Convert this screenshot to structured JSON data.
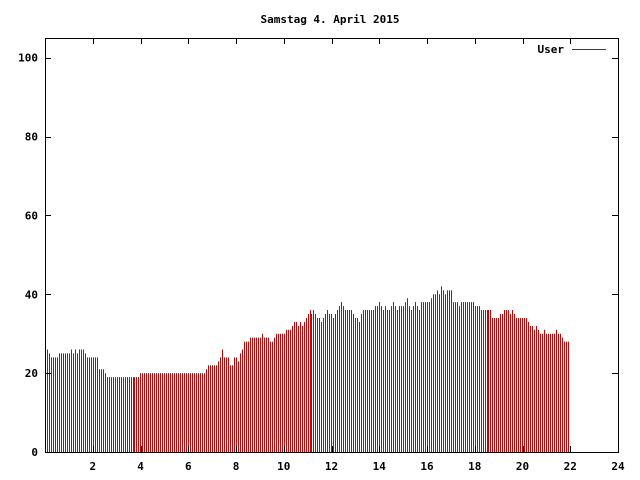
{
  "chart_data": {
    "type": "bar",
    "title": "Samstag 4. April 2015",
    "xlabel": "",
    "ylabel": "",
    "xlim": [
      0,
      24
    ],
    "ylim": [
      0,
      105
    ],
    "x_ticks": [
      2,
      4,
      6,
      8,
      10,
      12,
      14,
      16,
      18,
      20,
      22,
      24
    ],
    "y_ticks": [
      0,
      20,
      40,
      60,
      80,
      100
    ],
    "grid": false,
    "legend": "top-right",
    "bar_width_hours": 0.0833,
    "series": [
      {
        "name": "User",
        "color": "#cc0000",
        "x_start": 0,
        "x_step": 0.0833,
        "values": [
          26,
          26,
          25,
          24,
          24,
          24,
          24,
          25,
          25,
          25,
          25,
          25,
          25,
          26,
          25,
          26,
          25,
          26,
          26,
          26,
          25,
          24,
          24,
          24,
          24,
          24,
          24,
          21,
          21,
          21,
          20,
          19,
          19,
          19,
          19,
          19,
          19,
          19,
          19,
          19,
          19,
          19,
          19,
          19,
          19,
          19,
          19,
          19,
          20,
          20,
          20,
          20,
          20,
          20,
          20,
          20,
          20,
          20,
          20,
          20,
          20,
          20,
          20,
          20,
          20,
          20,
          20,
          20,
          20,
          20,
          20,
          20,
          20,
          20,
          20,
          20,
          20,
          20,
          20,
          20,
          20,
          21,
          22,
          22,
          22,
          22,
          22,
          23,
          24,
          26,
          24,
          24,
          24,
          22,
          22,
          24,
          24,
          23,
          25,
          26,
          28,
          28,
          28,
          29,
          29,
          29,
          29,
          29,
          29,
          30,
          29,
          29,
          29,
          28,
          28,
          29,
          30,
          30,
          30,
          30,
          30,
          31,
          31,
          31,
          32,
          33,
          33,
          32,
          33,
          32,
          33,
          34,
          35,
          36,
          35,
          36,
          35,
          34,
          34,
          33,
          34,
          35,
          36,
          35,
          35,
          34,
          35,
          36,
          37,
          38,
          37,
          36,
          36,
          36,
          36,
          35,
          34,
          34,
          33,
          35,
          36,
          36,
          36,
          36,
          36,
          36,
          37,
          37,
          38,
          37,
          36,
          37,
          36,
          36,
          37,
          38,
          37,
          36,
          37,
          37,
          37,
          38,
          39,
          37,
          36,
          37,
          38,
          37,
          36,
          38,
          38,
          38,
          38,
          38,
          39,
          40,
          40,
          41,
          40,
          42,
          41,
          40,
          41,
          41,
          41,
          38,
          38,
          38,
          37,
          38,
          38,
          38,
          38,
          38,
          38,
          38,
          37,
          37,
          37,
          36,
          36,
          36,
          36,
          36,
          36,
          34,
          34,
          34,
          34,
          35,
          35,
          36,
          36,
          36,
          35,
          36,
          35,
          34,
          34,
          34,
          34,
          34,
          34,
          33,
          32,
          32,
          31,
          32,
          31,
          30,
          30,
          31,
          30,
          30,
          30,
          30,
          30,
          31,
          30,
          30,
          29,
          28,
          28,
          28
        ]
      }
    ]
  }
}
